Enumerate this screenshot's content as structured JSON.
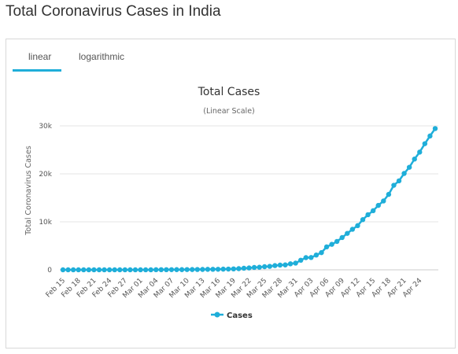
{
  "page": {
    "title": "Total Coronavirus Cases in India"
  },
  "tabs": [
    {
      "label": "linear",
      "active": true
    },
    {
      "label": "logarithmic",
      "active": false
    }
  ],
  "colors": {
    "series": "#1faed9",
    "tab_active": "#1faed9",
    "grid": "#e6e6e6"
  },
  "chart_data": {
    "type": "line",
    "title": "Total Cases",
    "subtitle": "(Linear Scale)",
    "ylabel": "Total Coronavirus Cases",
    "xlabel": "",
    "ylim": [
      0,
      30000
    ],
    "yticks": [
      0,
      10000,
      20000,
      30000
    ],
    "ytick_labels": [
      "0",
      "10k",
      "20k",
      "30k"
    ],
    "grid": true,
    "legend_position": "bottom-center",
    "x_tick_labels": [
      "Feb 15",
      "Feb 18",
      "Feb 21",
      "Feb 24",
      "Feb 27",
      "Mar 01",
      "Mar 04",
      "Mar 07",
      "Mar 10",
      "Mar 13",
      "Mar 16",
      "Mar 19",
      "Mar 22",
      "Mar 25",
      "Mar 28",
      "Mar 31",
      "Apr 03",
      "Apr 06",
      "Apr 09",
      "Apr 12",
      "Apr 15",
      "Apr 18",
      "Apr 21",
      "Apr 24"
    ],
    "x": [
      "Feb 15",
      "Feb 16",
      "Feb 17",
      "Feb 18",
      "Feb 19",
      "Feb 20",
      "Feb 21",
      "Feb 22",
      "Feb 23",
      "Feb 24",
      "Feb 25",
      "Feb 26",
      "Feb 27",
      "Feb 28",
      "Feb 29",
      "Mar 01",
      "Mar 02",
      "Mar 03",
      "Mar 04",
      "Mar 05",
      "Mar 06",
      "Mar 07",
      "Mar 08",
      "Mar 09",
      "Mar 10",
      "Mar 11",
      "Mar 12",
      "Mar 13",
      "Mar 14",
      "Mar 15",
      "Mar 16",
      "Mar 17",
      "Mar 18",
      "Mar 19",
      "Mar 20",
      "Mar 21",
      "Mar 22",
      "Mar 23",
      "Mar 24",
      "Mar 25",
      "Mar 26",
      "Mar 27",
      "Mar 28",
      "Mar 29",
      "Mar 30",
      "Mar 31",
      "Apr 01",
      "Apr 02",
      "Apr 03",
      "Apr 04",
      "Apr 05",
      "Apr 06",
      "Apr 07",
      "Apr 08",
      "Apr 09",
      "Apr 10",
      "Apr 11",
      "Apr 12",
      "Apr 13",
      "Apr 14",
      "Apr 15",
      "Apr 16",
      "Apr 17",
      "Apr 18",
      "Apr 19",
      "Apr 20",
      "Apr 21",
      "Apr 22",
      "Apr 23",
      "Apr 24",
      "Apr 25",
      "Apr 26",
      "Apr 27"
    ],
    "series": [
      {
        "name": "Cases",
        "values": [
          3,
          3,
          3,
          3,
          3,
          3,
          3,
          3,
          3,
          3,
          3,
          3,
          3,
          3,
          3,
          3,
          5,
          6,
          28,
          30,
          31,
          34,
          39,
          43,
          56,
          62,
          73,
          82,
          102,
          113,
          119,
          142,
          156,
          194,
          244,
          330,
          396,
          499,
          536,
          657,
          727,
          887,
          987,
          1024,
          1251,
          1397,
          1998,
          2543,
          2567,
          3082,
          3588,
          4778,
          5311,
          5916,
          6725,
          7598,
          8446,
          9205,
          10453,
          11487,
          12322,
          13430,
          14352,
          15722,
          17615,
          18539,
          20080,
          21370,
          23077,
          24530,
          26283,
          27890,
          29435
        ]
      }
    ]
  }
}
